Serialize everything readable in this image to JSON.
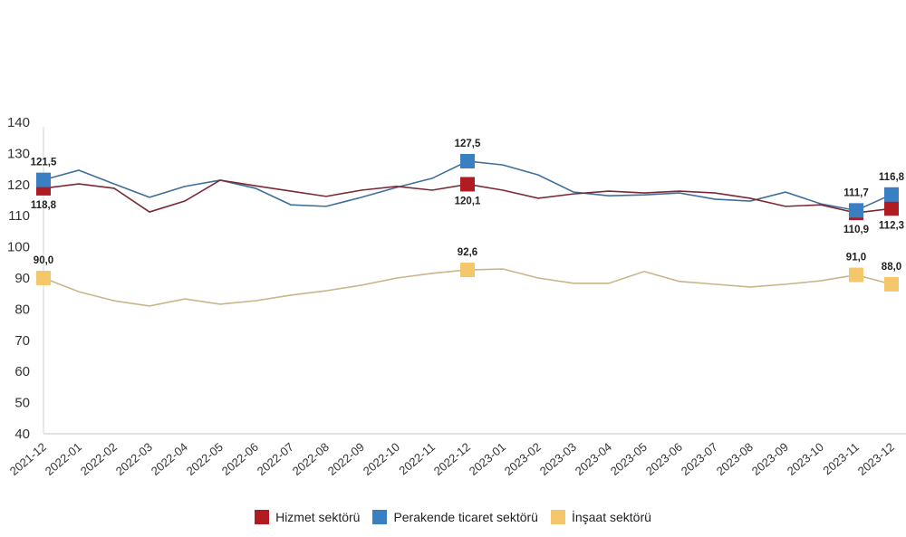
{
  "chart_data": {
    "type": "line",
    "title": "",
    "xlabel": "",
    "ylabel": "",
    "ylim": [
      40,
      140
    ],
    "yticks": [
      40,
      50,
      60,
      70,
      80,
      90,
      100,
      110,
      120,
      130,
      140
    ],
    "grid": false,
    "legend_position": "bottom-center",
    "categories": [
      "2021-12",
      "2022-01",
      "2022-02",
      "2022-03",
      "2022-04",
      "2022-05",
      "2022-06",
      "2022-07",
      "2022-08",
      "2022-09",
      "2022-10",
      "2022-11",
      "2022-12",
      "2023-01",
      "2023-02",
      "2023-03",
      "2023-04",
      "2023-05",
      "2023-06",
      "2023-07",
      "2023-08",
      "2023-09",
      "2023-10",
      "2023-11",
      "2023-12"
    ],
    "series": [
      {
        "name": "Hizmet sektörü",
        "color": "#b01c22",
        "values": [
          118.8,
          120.2,
          118.8,
          111.2,
          114.7,
          121.4,
          119.6,
          117.9,
          116.2,
          118.2,
          119.4,
          118.2,
          120.1,
          118.2,
          115.6,
          117.0,
          117.9,
          117.3,
          117.9,
          117.3,
          115.6,
          113.0,
          113.5,
          110.9,
          112.3
        ],
        "labeled_points": [
          {
            "index": 0,
            "label": "118,8",
            "position": "below"
          },
          {
            "index": 12,
            "label": "120,1",
            "position": "below"
          },
          {
            "index": 23,
            "label": "110,9",
            "position": "below"
          },
          {
            "index": 24,
            "label": "112,3",
            "position": "below"
          }
        ]
      },
      {
        "name": "Perakende ticaret sektörü",
        "color": "#3a7fc1",
        "values": [
          121.5,
          124.6,
          120.2,
          115.9,
          119.4,
          121.4,
          118.8,
          113.5,
          113.0,
          115.9,
          119.1,
          122.0,
          127.5,
          126.3,
          123.1,
          117.6,
          116.4,
          116.7,
          117.3,
          115.3,
          114.7,
          117.6,
          113.8,
          111.7,
          116.8
        ],
        "labeled_points": [
          {
            "index": 0,
            "label": "121,5",
            "position": "above"
          },
          {
            "index": 12,
            "label": "127,5",
            "position": "above"
          },
          {
            "index": 23,
            "label": "111,7",
            "position": "above"
          },
          {
            "index": 24,
            "label": "116,8",
            "position": "above"
          }
        ]
      },
      {
        "name": "İnşaat sektörü",
        "color": "#f4c86a",
        "values": [
          90.0,
          85.6,
          82.7,
          81.0,
          83.3,
          81.6,
          82.7,
          84.5,
          85.9,
          87.7,
          90.0,
          91.5,
          92.6,
          92.9,
          90.0,
          88.3,
          88.3,
          92.1,
          88.9,
          88.0,
          87.1,
          88.0,
          89.1,
          91.0,
          88.0
        ],
        "labeled_points": [
          {
            "index": 0,
            "label": "90,0",
            "position": "above"
          },
          {
            "index": 12,
            "label": "92,6",
            "position": "above"
          },
          {
            "index": 23,
            "label": "91,0",
            "position": "above"
          },
          {
            "index": 24,
            "label": "88,0",
            "position": "above"
          }
        ]
      }
    ]
  },
  "legend": {
    "items": [
      {
        "label": "Hizmet sektörü",
        "color": "#b01c22"
      },
      {
        "label": "Perakende ticaret sektörü",
        "color": "#3a7fc1"
      },
      {
        "label": "İnşaat sektörü",
        "color": "#f4c86a"
      }
    ]
  }
}
